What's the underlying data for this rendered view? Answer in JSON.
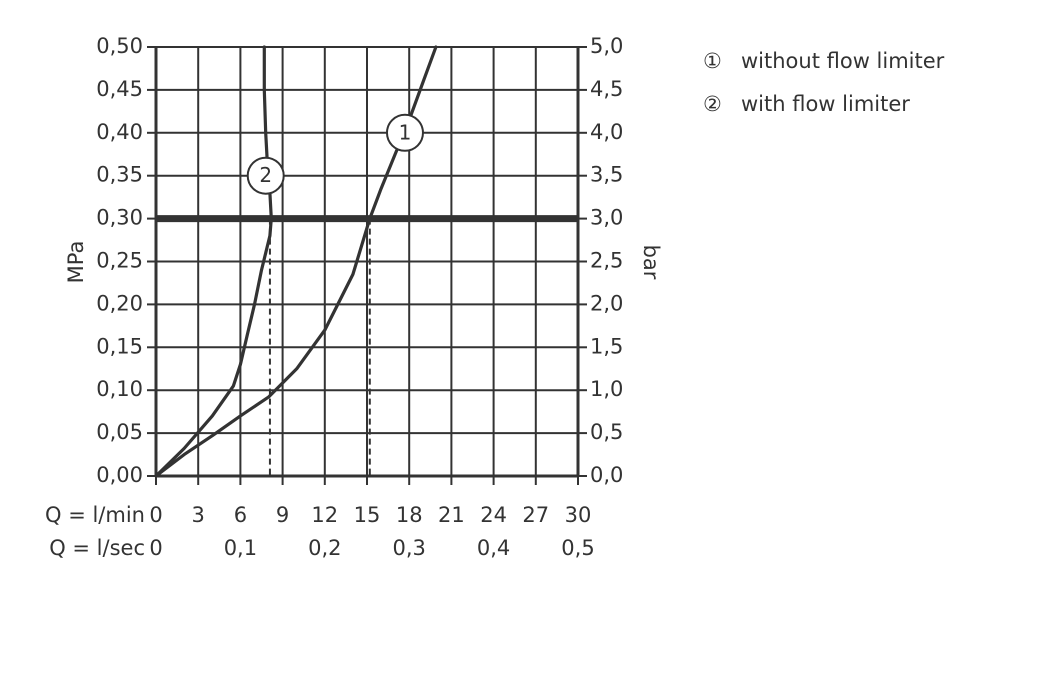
{
  "chart_data": {
    "type": "line",
    "grid": true,
    "x_axis": {
      "label": "Q = l/min",
      "range": [
        0,
        30
      ],
      "ticks": [
        "0",
        "3",
        "6",
        "9",
        "12",
        "15",
        "18",
        "21",
        "24",
        "27",
        "30"
      ],
      "secondary_label": "Q = l/sec",
      "secondary_ticks": [
        "0",
        "0,1",
        "0,2",
        "0,3",
        "0,4",
        "0,5"
      ]
    },
    "y_axis_left": {
      "label": "MPa",
      "range": [
        0,
        0.5
      ],
      "ticks": [
        "0,00",
        "0,05",
        "0,10",
        "0,15",
        "0,20",
        "0,25",
        "0,30",
        "0,35",
        "0,40",
        "0,45",
        "0,50"
      ]
    },
    "y_axis_right": {
      "label": "bar",
      "range": [
        0,
        5
      ],
      "ticks": [
        "0,0",
        "0,5",
        "1,0",
        "1,5",
        "2,0",
        "2,5",
        "3,0",
        "3,5",
        "4,0",
        "4,5",
        "5,0"
      ]
    },
    "reference_line": {
      "y": 0.3
    },
    "series": [
      {
        "marker": "1",
        "name": "without flow limiter",
        "x": [
          0,
          2,
          4,
          6,
          8,
          10,
          12,
          14,
          15.2,
          16,
          17,
          18,
          19,
          19.9
        ],
        "y": [
          0,
          0.025,
          0.047,
          0.07,
          0.092,
          0.125,
          0.17,
          0.235,
          0.3,
          0.335,
          0.375,
          0.415,
          0.46,
          0.5
        ],
        "label_at": [
          17.7,
          0.4
        ],
        "drop_line_x": 15.2
      },
      {
        "marker": "2",
        "name": "with flow limiter",
        "x": [
          0,
          2,
          4,
          5.5,
          6,
          6.5,
          7,
          7.5,
          8.1,
          8.2,
          8.1,
          7.9,
          7.8,
          7.7,
          7.7
        ],
        "y": [
          0,
          0.032,
          0.07,
          0.105,
          0.13,
          0.165,
          0.2,
          0.24,
          0.28,
          0.3,
          0.33,
          0.37,
          0.4,
          0.45,
          0.5
        ],
        "label_at": [
          7.8,
          0.35
        ],
        "drop_line_x": 8.1
      }
    ],
    "legend": {
      "placement": "top-right",
      "items": [
        {
          "symbol": "①",
          "text": "without flow limiter"
        },
        {
          "symbol": "②",
          "text": "with flow limiter"
        }
      ]
    }
  }
}
